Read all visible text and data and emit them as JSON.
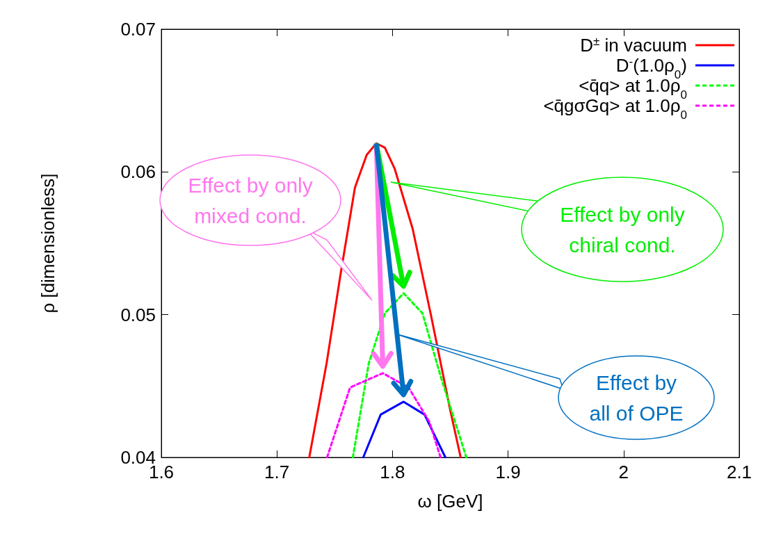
{
  "chart_data": {
    "type": "line",
    "xlabel": "ω [GeV]",
    "ylabel": "ρ [dimensionless]",
    "xlim": [
      1.6,
      2.1
    ],
    "xticks": [
      1.6,
      1.7,
      1.8,
      1.9,
      2,
      2.1
    ],
    "ylim": [
      0.04,
      0.07
    ],
    "yticks": [
      0.04,
      0.05,
      0.06,
      0.07
    ],
    "grid": false,
    "legend": "top right",
    "marker": "none",
    "series": [
      {
        "name": "D$^{±}$ in vacuum",
        "color": "#ff0000",
        "line_style": "solid",
        "x": [
          1.728,
          1.743,
          1.7554,
          1.7675,
          1.7777,
          1.786,
          1.7934,
          1.802,
          1.8175,
          1.8337,
          1.85,
          1.859
        ],
        "values": [
          0.04,
          0.0466,
          0.053,
          0.0589,
          0.0612,
          0.062,
          0.0617,
          0.0602,
          0.056,
          0.0498,
          0.0433,
          0.04
        ]
      },
      {
        "name": "D$^{-}$(1.0ρ$_{0}$)",
        "color": "#0000ff",
        "line_style": "solid",
        "x": [
          1.7747,
          1.7898,
          1.8096,
          1.8277,
          1.8458
        ],
        "values": [
          0.04,
          0.043,
          0.0439,
          0.043,
          0.04
        ]
      },
      {
        "name": "<q̄q> at 1.0ρ$_{0}$",
        "color": "#00ff00",
        "line_style": "dashed",
        "x": [
          1.7657,
          1.7795,
          1.7934,
          1.8096,
          1.8259,
          1.8416,
          1.8639
        ],
        "values": [
          0.04,
          0.0466,
          0.0501,
          0.0515,
          0.0501,
          0.0457,
          0.04
        ]
      },
      {
        "name": "<q̄gσGq> at 1.0ρ$_{0}$",
        "color": "#ff00ff",
        "line_style": "dashed",
        "x": [
          1.7434,
          1.7633,
          1.7916,
          1.8139,
          1.8319,
          1.8416
        ],
        "values": [
          0.04,
          0.0449,
          0.0459,
          0.0449,
          0.0425,
          0.04
        ]
      }
    ],
    "annotations": [
      "Effect by only\nmixed cond.",
      "Effect by only\nchiral cond.",
      "Effect by\nall of OPE"
    ]
  }
}
